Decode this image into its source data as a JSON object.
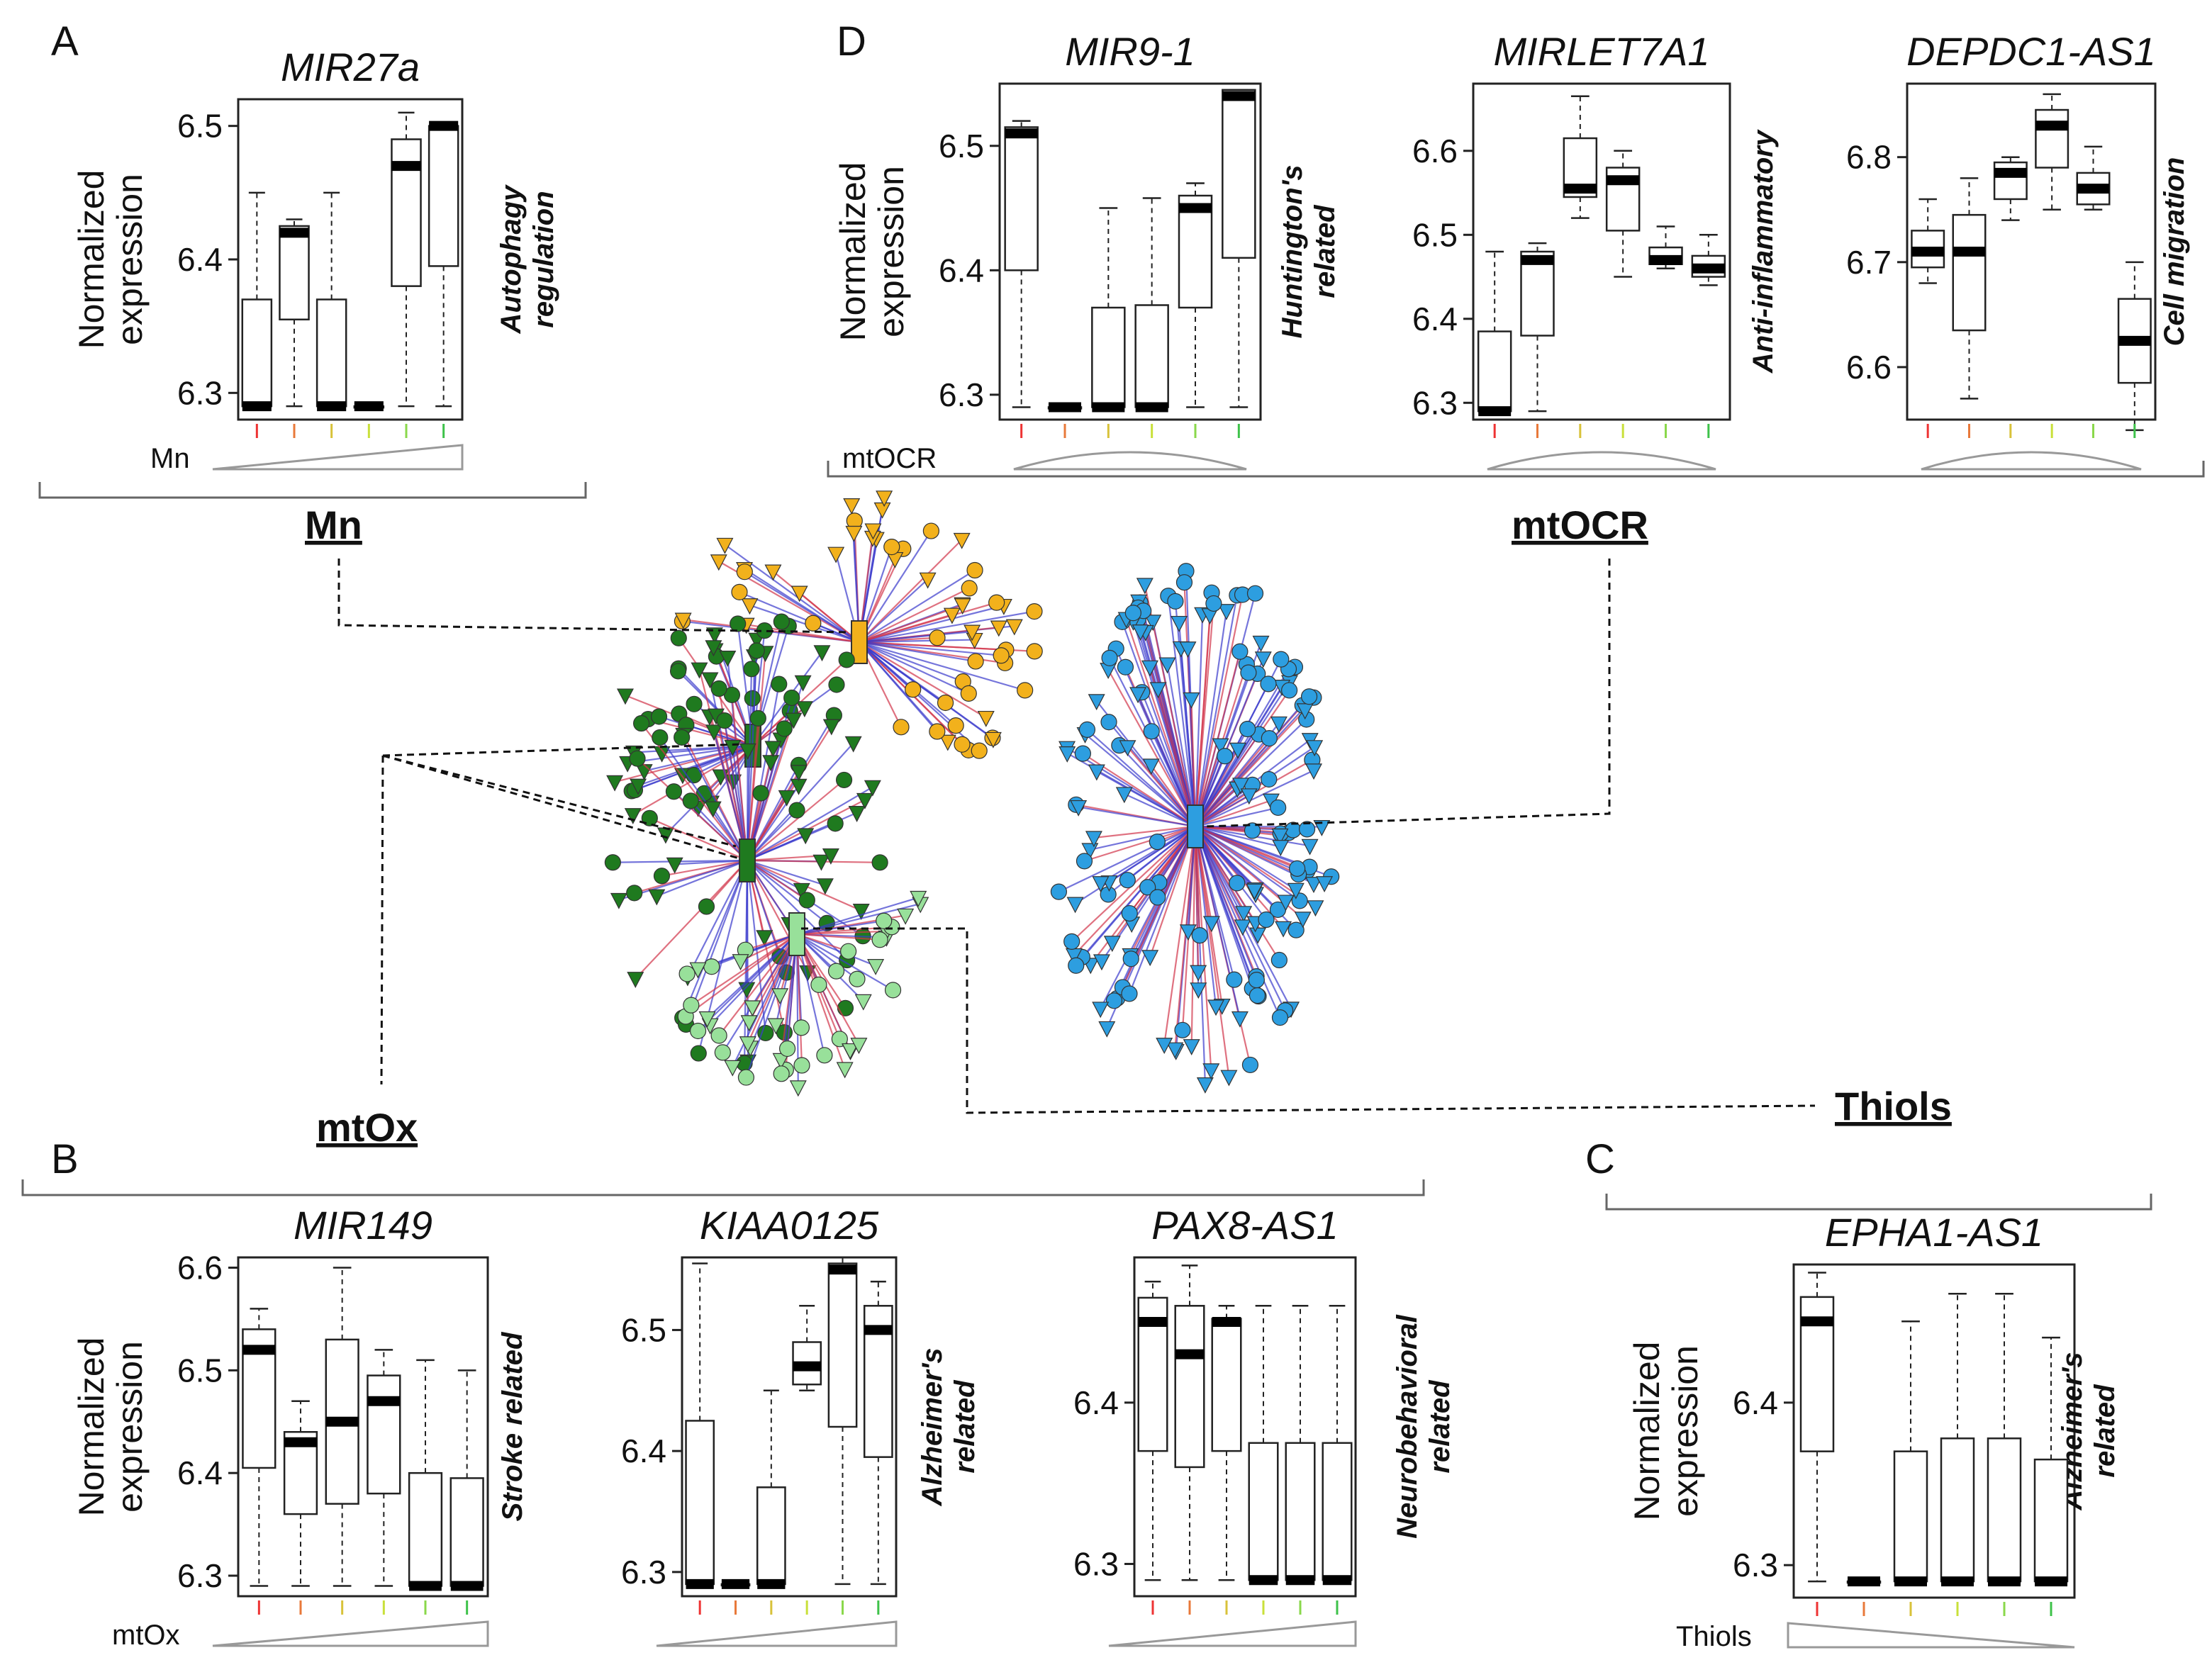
{
  "colors": {
    "mn": "#f2b11c",
    "mtox": "#1f7a1f",
    "thiols": "#98e09a",
    "mtocr": "#2d9ee0",
    "edge_pos": "#d2344a",
    "edge_neg": "#3a3acc"
  },
  "hubs": {
    "mn": "Mn",
    "mtox": "mtOx",
    "mtocr": "mtOCR",
    "thiols": "Thiols"
  },
  "network": {
    "nodes_per_hub": {
      "mn": 60,
      "mtox_1": 42,
      "mtox_2": 80,
      "thiols": 48,
      "mtocr": 180
    }
  },
  "chart_data": [
    {
      "type": "box",
      "panel": "A",
      "title": "MIR27a",
      "ylabel": [
        "Normalized",
        "expression"
      ],
      "ylim": [
        6.28,
        6.52
      ],
      "yticks": [
        "6.3",
        "6.4",
        "6.5"
      ],
      "annotation": "Autophagy regulation",
      "variable": "Mn",
      "gradient": "increasing",
      "box_colors": [
        "#e33",
        "#e8793a",
        "#d8c23a",
        "#c9e03a",
        "#8ad84b",
        "#3ec24a"
      ],
      "boxes": [
        {
          "min": 6.29,
          "q1": 6.29,
          "median": 6.29,
          "q3": 6.37,
          "max": 6.45
        },
        {
          "min": 6.29,
          "q1": 6.355,
          "median": 6.42,
          "q3": 6.425,
          "max": 6.43
        },
        {
          "min": 6.29,
          "q1": 6.29,
          "median": 6.29,
          "q3": 6.37,
          "max": 6.45
        },
        {
          "min": 6.29,
          "q1": 6.29,
          "median": 6.29,
          "q3": 6.29,
          "max": 6.29
        },
        {
          "min": 6.29,
          "q1": 6.38,
          "median": 6.47,
          "q3": 6.49,
          "max": 6.51
        },
        {
          "min": 6.29,
          "q1": 6.395,
          "median": 6.5,
          "q3": 6.5,
          "max": 6.5
        }
      ]
    },
    {
      "type": "box",
      "panel": "D",
      "title": "MIR9-1",
      "ylabel": [
        "Normalized",
        "expression"
      ],
      "ylim": [
        6.28,
        6.55
      ],
      "yticks": [
        "6.3",
        "6.4",
        "6.5"
      ],
      "annotation": "Huntington's related",
      "variable": "mtOCR",
      "gradient": "arc",
      "box_colors": [
        "#e33",
        "#e8793a",
        "#d8c23a",
        "#c9e03a",
        "#8ad84b",
        "#3ec24a"
      ],
      "boxes": [
        {
          "min": 6.29,
          "q1": 6.4,
          "median": 6.51,
          "q3": 6.515,
          "max": 6.52
        },
        {
          "min": 6.29,
          "q1": 6.29,
          "median": 6.29,
          "q3": 6.29,
          "max": 6.29
        },
        {
          "min": 6.29,
          "q1": 6.29,
          "median": 6.29,
          "q3": 6.37,
          "max": 6.45
        },
        {
          "min": 6.29,
          "q1": 6.29,
          "median": 6.29,
          "q3": 6.372,
          "max": 6.458
        },
        {
          "min": 6.29,
          "q1": 6.37,
          "median": 6.45,
          "q3": 6.46,
          "max": 6.47
        },
        {
          "min": 6.29,
          "q1": 6.41,
          "median": 6.54,
          "q3": 6.545,
          "max": 6.545
        }
      ]
    },
    {
      "type": "box",
      "panel": "D",
      "title": "MIRLET7A1",
      "ylabel": null,
      "ylim": [
        6.28,
        6.68
      ],
      "yticks": [
        "6.3",
        "6.4",
        "6.5",
        "6.6"
      ],
      "annotation": "Anti-inflammatory",
      "variable": "",
      "gradient": "arc",
      "box_colors": [
        "#e33",
        "#e8793a",
        "#d8c23a",
        "#c9e03a",
        "#8ad84b",
        "#3ec24a"
      ],
      "boxes": [
        {
          "min": 6.29,
          "q1": 6.29,
          "median": 6.29,
          "q3": 6.385,
          "max": 6.48
        },
        {
          "min": 6.29,
          "q1": 6.38,
          "median": 6.47,
          "q3": 6.48,
          "max": 6.49
        },
        {
          "min": 6.52,
          "q1": 6.545,
          "median": 6.555,
          "q3": 6.615,
          "max": 6.665
        },
        {
          "min": 6.45,
          "q1": 6.505,
          "median": 6.565,
          "q3": 6.58,
          "max": 6.6
        },
        {
          "min": 6.46,
          "q1": 6.465,
          "median": 6.47,
          "q3": 6.485,
          "max": 6.51
        },
        {
          "min": 6.44,
          "q1": 6.45,
          "median": 6.46,
          "q3": 6.475,
          "max": 6.5
        }
      ]
    },
    {
      "type": "box",
      "panel": "D",
      "title": "DEPDC1-AS1",
      "ylabel": null,
      "ylim": [
        6.55,
        6.87
      ],
      "yticks": [
        "6.6",
        "6.7",
        "6.8"
      ],
      "annotation": "Cell migration",
      "variable": "",
      "gradient": "arc",
      "box_colors": [
        "#e33",
        "#e8793a",
        "#d8c23a",
        "#c9e03a",
        "#8ad84b",
        "#3ec24a"
      ],
      "boxes": [
        {
          "min": 6.68,
          "q1": 6.695,
          "median": 6.71,
          "q3": 6.73,
          "max": 6.76
        },
        {
          "min": 6.57,
          "q1": 6.635,
          "median": 6.71,
          "q3": 6.745,
          "max": 6.78
        },
        {
          "min": 6.74,
          "q1": 6.76,
          "median": 6.785,
          "q3": 6.795,
          "max": 6.8
        },
        {
          "min": 6.75,
          "q1": 6.79,
          "median": 6.83,
          "q3": 6.845,
          "max": 6.86
        },
        {
          "min": 6.75,
          "q1": 6.755,
          "median": 6.77,
          "q3": 6.785,
          "max": 6.81
        },
        {
          "min": 6.54,
          "q1": 6.585,
          "median": 6.625,
          "q3": 6.665,
          "max": 6.7
        }
      ]
    },
    {
      "type": "box",
      "panel": "B",
      "title": "MIR149",
      "ylabel": [
        "Normalized",
        "expression"
      ],
      "ylim": [
        6.28,
        6.61
      ],
      "yticks": [
        "6.3",
        "6.4",
        "6.5",
        "6.6"
      ],
      "annotation": "Stroke related",
      "variable": "mtOx",
      "gradient": "increasing",
      "box_colors": [
        "#e33",
        "#e8793a",
        "#d8c23a",
        "#c9e03a",
        "#8ad84b",
        "#3ec24a"
      ],
      "boxes": [
        {
          "min": 6.29,
          "q1": 6.405,
          "median": 6.52,
          "q3": 6.54,
          "max": 6.56
        },
        {
          "min": 6.29,
          "q1": 6.36,
          "median": 6.43,
          "q3": 6.44,
          "max": 6.47
        },
        {
          "min": 6.29,
          "q1": 6.37,
          "median": 6.45,
          "q3": 6.53,
          "max": 6.6
        },
        {
          "min": 6.29,
          "q1": 6.38,
          "median": 6.47,
          "q3": 6.495,
          "max": 6.52
        },
        {
          "min": 6.29,
          "q1": 6.29,
          "median": 6.29,
          "q3": 6.4,
          "max": 6.51
        },
        {
          "min": 6.29,
          "q1": 6.29,
          "median": 6.29,
          "q3": 6.395,
          "max": 6.5
        }
      ]
    },
    {
      "type": "box",
      "panel": "B",
      "title": "KIAA0125",
      "ylabel": null,
      "ylim": [
        6.28,
        6.56
      ],
      "yticks": [
        "6.3",
        "6.4",
        "6.5"
      ],
      "annotation": "Alzheimer's related",
      "variable": "",
      "gradient": "increasing",
      "box_colors": [
        "#e33",
        "#e8793a",
        "#d8c23a",
        "#c9e03a",
        "#8ad84b",
        "#3ec24a"
      ],
      "boxes": [
        {
          "min": 6.29,
          "q1": 6.29,
          "median": 6.29,
          "q3": 6.425,
          "max": 6.555
        },
        {
          "min": 6.29,
          "q1": 6.29,
          "median": 6.29,
          "q3": 6.29,
          "max": 6.29
        },
        {
          "min": 6.29,
          "q1": 6.29,
          "median": 6.29,
          "q3": 6.37,
          "max": 6.45
        },
        {
          "min": 6.45,
          "q1": 6.455,
          "median": 6.47,
          "q3": 6.49,
          "max": 6.52
        },
        {
          "min": 6.29,
          "q1": 6.42,
          "median": 6.55,
          "q3": 6.555,
          "max": 6.56
        },
        {
          "min": 6.29,
          "q1": 6.395,
          "median": 6.5,
          "q3": 6.52,
          "max": 6.54
        }
      ]
    },
    {
      "type": "box",
      "panel": "B",
      "title": "PAX8-AS1",
      "ylabel": null,
      "ylim": [
        6.28,
        6.49
      ],
      "yticks": [
        "6.3",
        "6.4"
      ],
      "annotation": "Neurobehavioral related",
      "variable": "",
      "gradient": "increasing",
      "box_colors": [
        "#e33",
        "#e8793a",
        "#d8c23a",
        "#c9e03a",
        "#8ad84b",
        "#3ec24a"
      ],
      "boxes": [
        {
          "min": 6.29,
          "q1": 6.37,
          "median": 6.45,
          "q3": 6.465,
          "max": 6.475
        },
        {
          "min": 6.29,
          "q1": 6.36,
          "median": 6.43,
          "q3": 6.46,
          "max": 6.485
        },
        {
          "min": 6.29,
          "q1": 6.37,
          "median": 6.45,
          "q3": 6.452,
          "max": 6.46
        },
        {
          "min": 6.29,
          "q1": 6.29,
          "median": 6.29,
          "q3": 6.375,
          "max": 6.46
        },
        {
          "min": 6.29,
          "q1": 6.29,
          "median": 6.29,
          "q3": 6.375,
          "max": 6.46
        },
        {
          "min": 6.29,
          "q1": 6.29,
          "median": 6.29,
          "q3": 6.375,
          "max": 6.46
        }
      ]
    },
    {
      "type": "box",
      "panel": "C",
      "title": "EPHA1-AS1",
      "ylabel": [
        "Normalized",
        "expression"
      ],
      "ylim": [
        6.28,
        6.485
      ],
      "yticks": [
        "6.3",
        "6.4"
      ],
      "annotation": "Alzheimer's related",
      "variable": "Thiols",
      "gradient": "decreasing",
      "box_colors": [
        "#e33",
        "#e8793a",
        "#d8c23a",
        "#c9e03a",
        "#8ad84b",
        "#3ec24a"
      ],
      "boxes": [
        {
          "min": 6.29,
          "q1": 6.37,
          "median": 6.45,
          "q3": 6.465,
          "max": 6.48
        },
        {
          "min": 6.29,
          "q1": 6.29,
          "median": 6.29,
          "q3": 6.29,
          "max": 6.29
        },
        {
          "min": 6.29,
          "q1": 6.29,
          "median": 6.29,
          "q3": 6.37,
          "max": 6.45
        },
        {
          "min": 6.29,
          "q1": 6.29,
          "median": 6.29,
          "q3": 6.378,
          "max": 6.467
        },
        {
          "min": 6.29,
          "q1": 6.29,
          "median": 6.29,
          "q3": 6.378,
          "max": 6.467
        },
        {
          "min": 6.29,
          "q1": 6.29,
          "median": 6.29,
          "q3": 6.365,
          "max": 6.44
        }
      ]
    }
  ]
}
